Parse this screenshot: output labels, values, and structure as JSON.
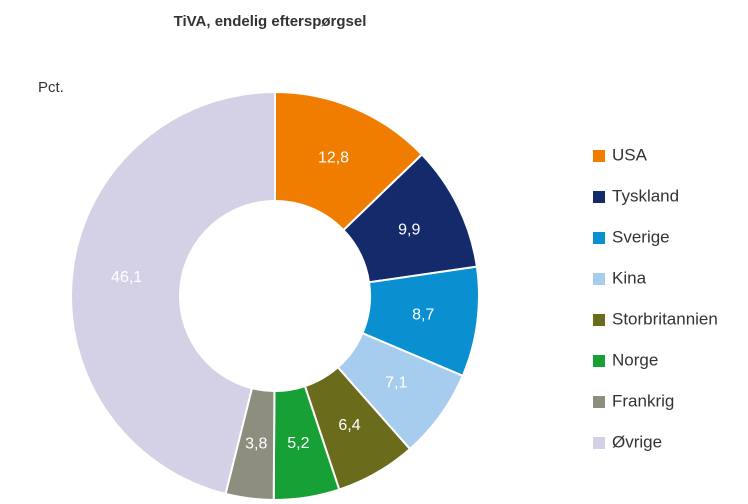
{
  "chart_data": {
    "type": "pie",
    "title": "TiVA, endelig efterspørgsel",
    "ylabel": "Pct.",
    "categories": [
      "USA",
      "Tyskland",
      "Sverige",
      "Kina",
      "Storbritannien",
      "Norge",
      "Frankrig",
      "Øvrige"
    ],
    "values": [
      12.8,
      9.9,
      8.7,
      7.1,
      6.4,
      5.2,
      3.8,
      46.1
    ],
    "value_labels": [
      "12,8",
      "9,9",
      "8,7",
      "7,1",
      "6,4",
      "5,2",
      "3,8",
      "46,1"
    ],
    "colors": [
      "#f07d00",
      "#142a6b",
      "#0a8fd0",
      "#a7cdee",
      "#6b6b1c",
      "#17a035",
      "#8e8e7e",
      "#d4d1e6"
    ],
    "legend": "right"
  }
}
